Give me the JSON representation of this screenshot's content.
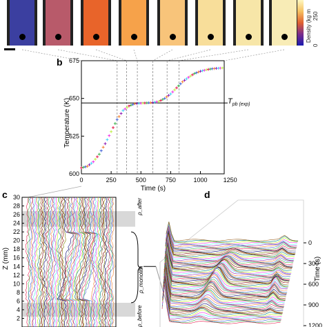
{
  "panels": {
    "b": "b",
    "c": "c",
    "d": "d"
  },
  "strip": {
    "tile_colors": [
      "#3b3fa0",
      "#b85a6a",
      "#e8642a",
      "#f6a24a",
      "#f8c47a",
      "#f8de9a",
      "#f7e6a8",
      "#f8ecb6"
    ],
    "colorbar_label": "Density (kg m",
    "colorbar_ticks": [
      "250",
      "0"
    ]
  },
  "chart_b": {
    "ylabel": "Temperature (K)",
    "xlabel": "Time (s)",
    "xlim": [
      0,
      1200
    ],
    "ylim": [
      600,
      675
    ],
    "x_ticks": [
      "0",
      "250",
      "500",
      "750",
      "1000",
      "1250"
    ],
    "y_ticks": [
      "600",
      "625",
      "650",
      "675"
    ],
    "ref_label": "T",
    "ref_sub": "pb (exp)",
    "ref_value": 647,
    "dashed_times": [
      300,
      380,
      470,
      600,
      720,
      820
    ]
  },
  "chart_c": {
    "ylabel": "Z (mm)",
    "y_ticks": [
      "30",
      "28",
      "26",
      "24",
      "22",
      "20",
      "18",
      "16",
      "14",
      "12",
      "10",
      "8",
      "6",
      "4",
      "2"
    ],
    "ylim": [
      0,
      30
    ],
    "band_top": "ρ_after",
    "band_mid": "ρ_monolith",
    "band_bottom": "ρ_before"
  },
  "chart_d": {
    "time_label": "Time (s)",
    "time_ticks": [
      "0",
      "300",
      "600",
      "900",
      "1200"
    ]
  },
  "chart_data": [
    {
      "type": "line",
      "title": "",
      "xlabel": "Time (s)",
      "ylabel": "Temperature (K)",
      "xlim": [
        0,
        1200
      ],
      "ylim": [
        600,
        675
      ],
      "x": [
        0,
        50,
        100,
        150,
        200,
        250,
        300,
        350,
        400,
        450,
        500,
        550,
        600,
        650,
        700,
        750,
        800,
        850,
        900,
        950,
        1000,
        1050,
        1100,
        1150,
        1200
      ],
      "series": [
        {
          "values": [
            604,
            605,
            608,
            613,
            620,
            628,
            636,
            642,
            645,
            646.5,
            646.8,
            647,
            647.3,
            648,
            650,
            653,
            657,
            661,
            664,
            666.5,
            668,
            669,
            669.7,
            670,
            670.3
          ]
        }
      ]
    }
  ]
}
